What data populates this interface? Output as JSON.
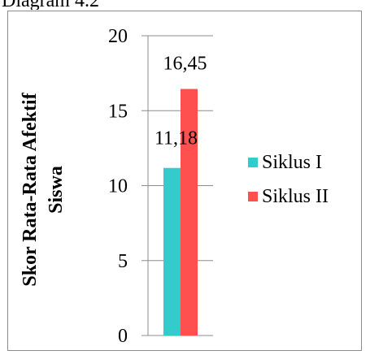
{
  "top_fragment": "Diagram 4.2 Skor Rata-Rata Afektif",
  "chart_data": {
    "type": "bar",
    "categories": [
      ""
    ],
    "series": [
      {
        "name": "Siklus I",
        "values": [
          11.18
        ],
        "label": "11,18",
        "color": "#33CCCC"
      },
      {
        "name": "Siklus II",
        "values": [
          16.45
        ],
        "label": "16,45",
        "color": "#FF5050"
      }
    ],
    "ylabel_lines": [
      "Skor Rata-Rata Afektif",
      "Siswa"
    ],
    "yticks": [
      0,
      5,
      10,
      15,
      20
    ],
    "ylim": [
      0,
      20
    ],
    "grid": true,
    "legend": "right"
  }
}
